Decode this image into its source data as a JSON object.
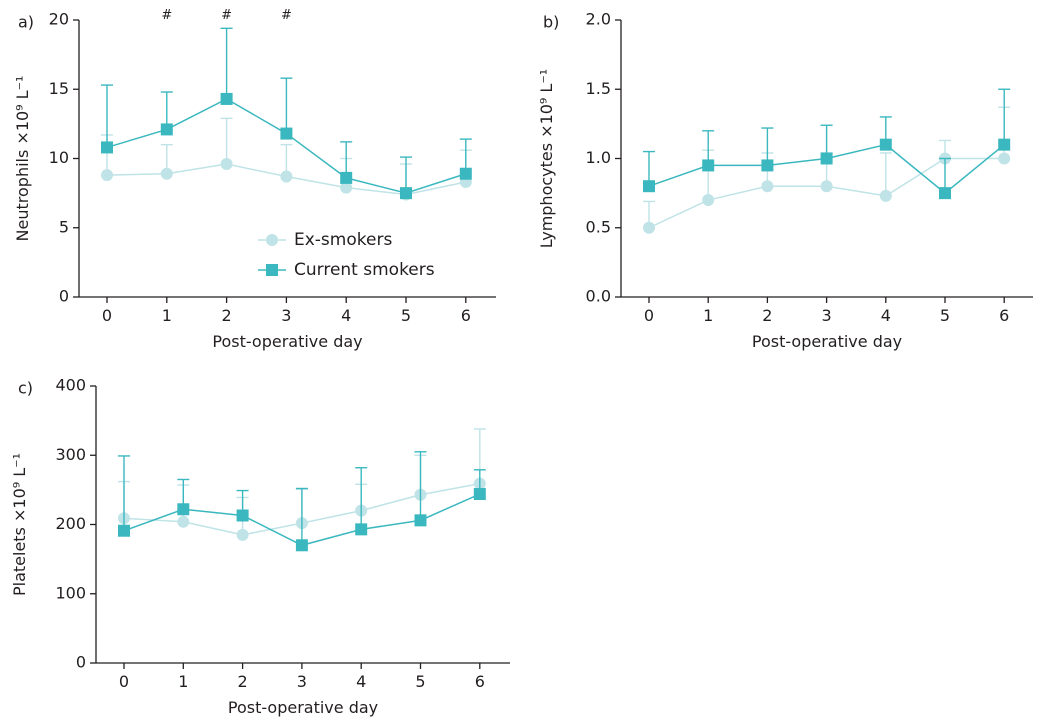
{
  "chart_data": [
    {
      "panel": "a)",
      "type": "line",
      "xlabel": "Post-operative day",
      "ylabel": "Neutrophils ×10⁹ L⁻¹",
      "ylim": [
        0,
        20
      ],
      "yticks": [
        "0",
        "5",
        "10",
        "15",
        "20"
      ],
      "x": [
        0,
        1,
        2,
        3,
        4,
        5,
        6
      ],
      "xticks": [
        "0",
        "1",
        "2",
        "3",
        "4",
        "5",
        "6"
      ],
      "series": [
        {
          "name": "Ex-smokers",
          "color": "#bfe3e6",
          "marker": "circle",
          "values": [
            8.8,
            8.9,
            9.6,
            8.7,
            7.9,
            7.4,
            8.3
          ],
          "upper": [
            11.7,
            11.0,
            12.9,
            11.0,
            10.0,
            9.6,
            10.6
          ]
        },
        {
          "name": "Current smokers",
          "color": "#3bb8bf",
          "marker": "square",
          "values": [
            10.8,
            12.1,
            14.3,
            11.8,
            8.6,
            7.5,
            8.9
          ],
          "upper": [
            15.3,
            14.8,
            19.4,
            15.8,
            11.2,
            10.1,
            11.4
          ]
        }
      ],
      "annotations": [
        {
          "x": 1,
          "text": "#"
        },
        {
          "x": 2,
          "text": "#"
        },
        {
          "x": 3,
          "text": "#"
        }
      ],
      "legend": {
        "position": "center-right",
        "entries": [
          "Ex-smokers",
          "Current smokers"
        ]
      }
    },
    {
      "panel": "b)",
      "type": "line",
      "xlabel": "Post-operative day",
      "ylabel": "Lymphocytes ×10⁹ L⁻¹",
      "ylim": [
        0,
        2
      ],
      "yticks": [
        "0.0",
        "0.5",
        "1.0",
        "1.5",
        "2.0"
      ],
      "x": [
        0,
        1,
        2,
        3,
        4,
        5,
        6
      ],
      "xticks": [
        "0",
        "1",
        "2",
        "3",
        "4",
        "5",
        "6"
      ],
      "series": [
        {
          "name": "Ex-smokers",
          "color": "#bfe3e6",
          "marker": "circle",
          "values": [
            0.5,
            0.7,
            0.8,
            0.8,
            0.73,
            1.0,
            1.0
          ],
          "upper": [
            0.69,
            1.06,
            1.04,
            1.04,
            1.04,
            1.13,
            1.37
          ]
        },
        {
          "name": "Current smokers",
          "color": "#3bb8bf",
          "marker": "square",
          "values": [
            0.8,
            0.95,
            0.95,
            1.0,
            1.1,
            0.75,
            1.1
          ],
          "upper": [
            1.05,
            1.2,
            1.22,
            1.24,
            1.3,
            1.0,
            1.5
          ]
        }
      ]
    },
    {
      "panel": "c)",
      "type": "line",
      "xlabel": "Post-operative day",
      "ylabel": "Platelets ×10⁹ L⁻¹",
      "ylim": [
        0,
        400
      ],
      "yticks": [
        "0",
        "100",
        "200",
        "300",
        "400"
      ],
      "x": [
        0,
        1,
        2,
        3,
        4,
        5,
        6
      ],
      "xticks": [
        "0",
        "1",
        "2",
        "3",
        "4",
        "5",
        "6"
      ],
      "series": [
        {
          "name": "Ex-smokers",
          "color": "#bfe3e6",
          "marker": "circle",
          "values": [
            209,
            204,
            185,
            202,
            220,
            243,
            259
          ],
          "upper": [
            262,
            257,
            239,
            251,
            258,
            300,
            338
          ]
        },
        {
          "name": "Current smokers",
          "color": "#3bb8bf",
          "marker": "square",
          "values": [
            191,
            222,
            213,
            170,
            193,
            206,
            244
          ],
          "upper": [
            299,
            265,
            249,
            252,
            282,
            305,
            279
          ]
        }
      ]
    }
  ]
}
